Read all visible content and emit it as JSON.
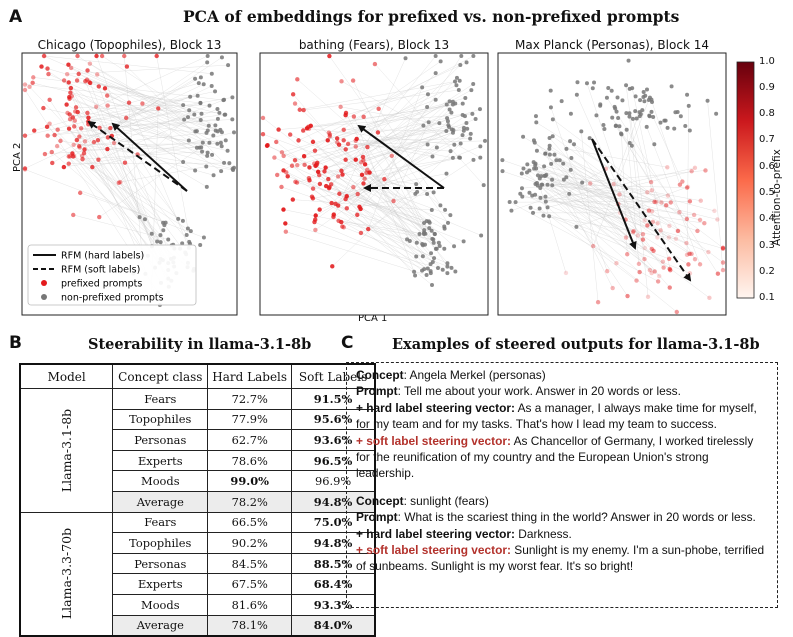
{
  "figure": {
    "panel_a_letter": "A",
    "panel_b_letter": "B",
    "panel_c_letter": "C",
    "panel_a_title": "PCA of embeddings for prefixed vs. non-prefixed prompts",
    "panel_b_title": "Steerability in llama-3.1-8b",
    "panel_c_title": "Examples of steered outputs for llama-3.1-8b"
  },
  "scatter": {
    "xlabel": "PCA 1",
    "ylabel": "PCA 2",
    "subplots": [
      {
        "title": "Chicago (Topophiles), Block 13"
      },
      {
        "title": "bathing (Fears), Block 13"
      },
      {
        "title": "Max Planck (Personas), Block 14"
      }
    ],
    "legend": {
      "hard": "RFM (hard labels)",
      "soft": "RFM (soft labels)",
      "prefixed": "prefixed prompts",
      "nonprefixed": "non-prefixed prompts"
    },
    "colorbar": {
      "label": "Attention-to-prefix",
      "ticks": [
        "1.0",
        "0.9",
        "0.8",
        "0.7",
        "0.6",
        "0.5",
        "0.4",
        "0.3",
        "0.2",
        "0.1"
      ]
    },
    "colors": {
      "prefixed": "#e31a1c",
      "nonprefixed": "#777777",
      "line": "#cccccc"
    }
  },
  "table": {
    "headers": [
      "Model",
      "Concept class",
      "Hard Labels",
      "Soft Labels"
    ],
    "groups": [
      {
        "model": "Llama-3.1-8b",
        "rows": [
          {
            "concept": "Fears",
            "hard": "72.7%",
            "soft": "91.5%",
            "bold": "soft"
          },
          {
            "concept": "Topophiles",
            "hard": "77.9%",
            "soft": "95.6%",
            "bold": "soft"
          },
          {
            "concept": "Personas",
            "hard": "62.7%",
            "soft": "93.6%",
            "bold": "soft"
          },
          {
            "concept": "Experts",
            "hard": "78.6%",
            "soft": "96.5%",
            "bold": "soft"
          },
          {
            "concept": "Moods",
            "hard": "99.0%",
            "soft": "96.9%",
            "bold": "hard"
          },
          {
            "concept": "Average",
            "hard": "78.2%",
            "soft": "94.8%",
            "bold": "soft",
            "avg": true
          }
        ]
      },
      {
        "model": "Llama-3.3-70b",
        "rows": [
          {
            "concept": "Fears",
            "hard": "66.5%",
            "soft": "75.0%",
            "bold": "soft"
          },
          {
            "concept": "Topophiles",
            "hard": "90.2%",
            "soft": "94.8%",
            "bold": "soft"
          },
          {
            "concept": "Personas",
            "hard": "84.5%",
            "soft": "88.5%",
            "bold": "soft"
          },
          {
            "concept": "Experts",
            "hard": "67.5%",
            "soft": "68.4%",
            "bold": "soft"
          },
          {
            "concept": "Moods",
            "hard": "81.6%",
            "soft": "93.3%",
            "bold": "soft"
          },
          {
            "concept": "Average",
            "hard": "78.1%",
            "soft": "84.0%",
            "bold": "soft",
            "avg": true
          }
        ]
      }
    ]
  },
  "examples": [
    {
      "concept_label": "Concept",
      "concept_value": ": Angela Merkel (personas)",
      "prompt_label": "Prompt",
      "prompt_value": ": Tell me about your work.  Answer in 20 words or less.",
      "hard_label": "+ hard label steering vector:",
      "hard_value": " As a manager, I always make time for myself, for my team and for my tasks. That's how I lead my team to success.",
      "soft_label": "+ soft label steering vector:",
      "soft_value": " As Chancellor of Germany, I worked tirelessly for the reunification of my country and the European Union's strong leadership."
    },
    {
      "concept_label": "Concept",
      "concept_value": ": sunlight (fears)",
      "prompt_label": "Prompt",
      "prompt_value": ": What is the scariest thing in the world? Answer in 20 words or less.",
      "hard_label": "+ hard label steering vector:",
      "hard_value": " Darkness.",
      "soft_label": "+ soft label steering vector:",
      "soft_value": " Sunlight is my enemy. I'm a sun-phobe, terrified of sunbeams.  Sunlight is my worst fear.  It's so bright!"
    }
  ]
}
